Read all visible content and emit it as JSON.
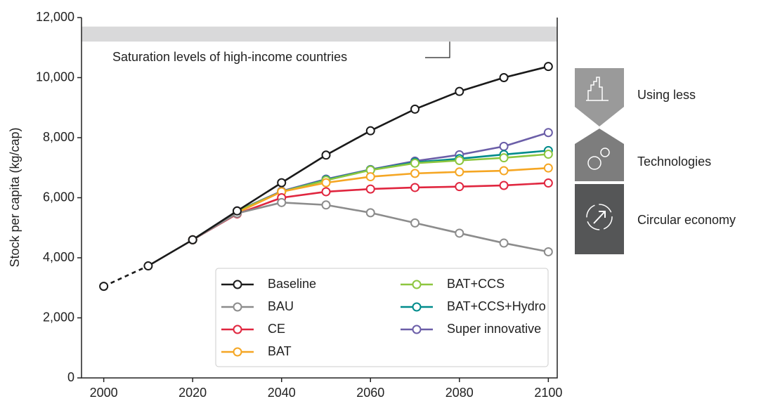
{
  "chart_data": {
    "type": "line",
    "y_label": "Stock per capita (kg/cap)",
    "x": [
      2000,
      2010,
      2020,
      2030,
      2040,
      2050,
      2060,
      2070,
      2080,
      2090,
      2100
    ],
    "xlim": [
      1995,
      2102
    ],
    "xticks": [
      2000,
      2020,
      2040,
      2060,
      2080,
      2100
    ],
    "ylim": [
      0,
      12000
    ],
    "yticks": [
      0,
      {
        "value": 2000,
        "label": "2,000"
      },
      {
        "value": 4000,
        "label": "4,000"
      },
      {
        "value": 6000,
        "label": "6,000"
      },
      {
        "value": 8000,
        "label": "8,000"
      },
      {
        "value": 10000,
        "label": "10,000"
      },
      {
        "value": 12000,
        "label": "12,000"
      }
    ],
    "dashed_until_x": 2010,
    "band": {
      "range": [
        11200,
        11700
      ],
      "color": "#d9d9da",
      "label": "Saturation levels of high-income countries"
    },
    "series": [
      {
        "name": "Baseline",
        "color": "#1a1a1a",
        "values": [
          3050,
          3730,
          4600,
          5560,
          6500,
          7420,
          8230,
          8950,
          9540,
          10000,
          10370
        ]
      },
      {
        "name": "BAU",
        "color": "#8c8c8c",
        "values": [
          null,
          null,
          4600,
          5480,
          5840,
          5760,
          5500,
          5160,
          4820,
          4490,
          4200
        ]
      },
      {
        "name": "CE",
        "color": "#e0263f",
        "values": [
          null,
          null,
          4600,
          5460,
          6000,
          6200,
          6290,
          6340,
          6370,
          6410,
          6490
        ]
      },
      {
        "name": "BAT",
        "color": "#f5a623",
        "values": [
          null,
          null,
          4600,
          5500,
          6200,
          6500,
          6700,
          6810,
          6860,
          6900,
          6990
        ]
      },
      {
        "name": "BAT+CCS",
        "color": "#8dc63f",
        "values": [
          null,
          null,
          4600,
          5550,
          6200,
          6580,
          6920,
          7150,
          7240,
          7330,
          7450
        ]
      },
      {
        "name": "BAT+CCS+Hydro",
        "color": "#008b8b",
        "values": [
          null,
          null,
          4600,
          5550,
          6200,
          6600,
          6930,
          7180,
          7300,
          7440,
          7570
        ]
      },
      {
        "name": "Super innovative",
        "color": "#6b5ea8",
        "values": [
          null,
          null,
          4600,
          5560,
          6220,
          6620,
          6940,
          7220,
          7430,
          7710,
          8170
        ]
      }
    ]
  },
  "strategies": [
    "Using less",
    "Technologies",
    "Circular economy"
  ]
}
